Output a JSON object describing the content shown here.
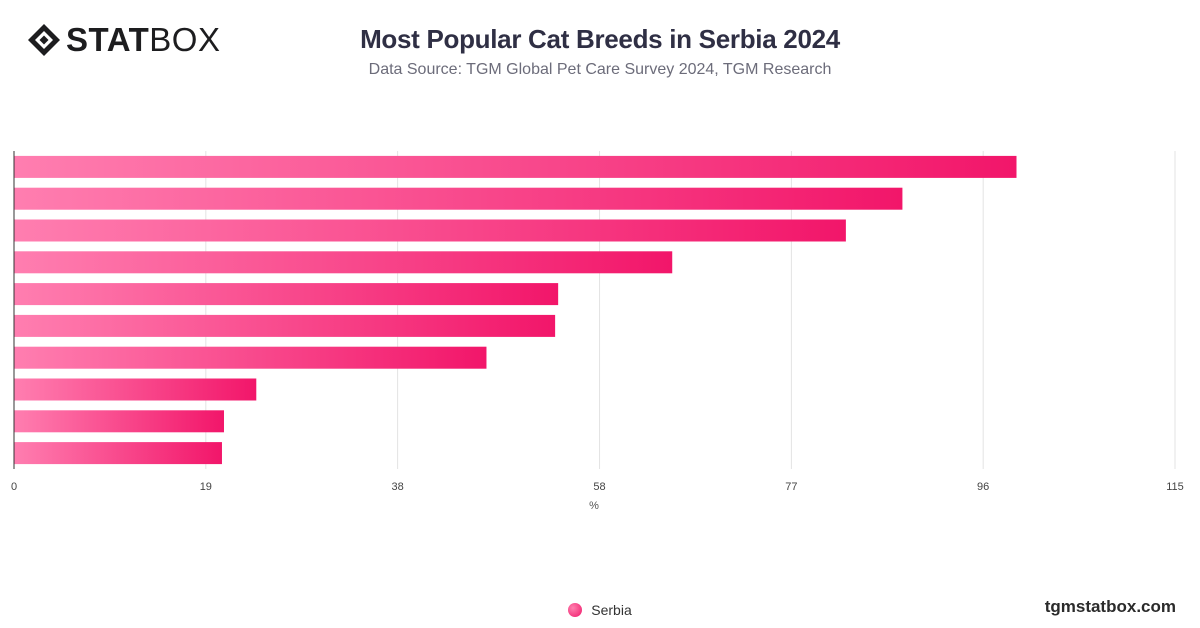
{
  "brand": {
    "logo_bold": "STAT",
    "logo_light": "BOX",
    "footer": "tgmstatbox.com"
  },
  "chart_data": {
    "type": "bar",
    "orientation": "horizontal",
    "title": "Most Popular Cat Breeds in Serbia 2024",
    "subtitle": "Data Source: TGM Global Pet Care Survey 2024, TGM Research",
    "xlabel": "%",
    "ylabel": "",
    "xlim": [
      0,
      115
    ],
    "ticks": [
      0,
      19,
      38,
      58,
      77,
      96,
      115
    ],
    "grid": true,
    "legend_placement": "bottom-center",
    "colors": {
      "bar_start": "#ff7eb0",
      "bar_end": "#f2166a",
      "grid": "#e3e3e3",
      "axis": "#333333"
    },
    "series": [
      {
        "name": "Serbia",
        "values": [
          99.3,
          88.0,
          82.4,
          65.2,
          53.9,
          53.6,
          46.8,
          24.0,
          20.8,
          20.6
        ]
      }
    ]
  }
}
